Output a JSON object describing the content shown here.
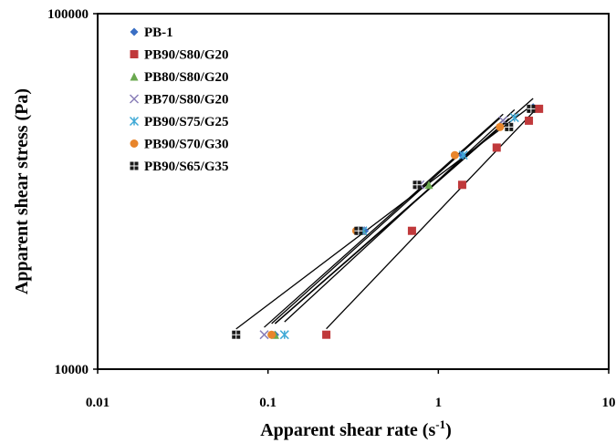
{
  "chart_data": {
    "type": "scatter",
    "xscale": "log",
    "yscale": "log",
    "xlim": [
      0.01,
      10
    ],
    "ylim": [
      10000,
      100000
    ],
    "xlabel": "Apparent shear rate (s",
    "xlabel_sup": "-1",
    "xlabel_tail": ")",
    "ylabel": "Apparent shear stress (Pa)",
    "xticks": [
      {
        "value": 0.01,
        "label": "0.01"
      },
      {
        "value": 0.1,
        "label": "0.1"
      },
      {
        "value": 1,
        "label": "1"
      },
      {
        "value": 10,
        "label": "10"
      }
    ],
    "yticks": [
      {
        "value": 10000,
        "label": "10000"
      },
      {
        "value": 100000,
        "label": "100000"
      }
    ],
    "grid": false,
    "legend_position": "top-left",
    "trendlines": "power",
    "series": [
      {
        "name": "PB-1",
        "color": "#3a6fc4",
        "marker": "diamond",
        "points": [
          [
            0.11,
            12500
          ],
          [
            0.37,
            24500
          ],
          [
            1.38,
            40000
          ],
          [
            3.6,
            54500
          ]
        ]
      },
      {
        "name": "PB90/S80/G20",
        "color": "#c0393b",
        "marker": "square",
        "points": [
          [
            0.22,
            12500
          ],
          [
            0.7,
            24500
          ],
          [
            1.38,
            33000
          ],
          [
            2.2,
            42000
          ],
          [
            3.4,
            50000
          ],
          [
            3.9,
            54000
          ]
        ]
      },
      {
        "name": "PB80/S80/G20",
        "color": "#6aa84f",
        "marker": "triangle",
        "points": [
          [
            0.11,
            12500
          ],
          [
            0.36,
            24500
          ],
          [
            0.88,
            33000
          ],
          [
            2.6,
            48000
          ]
        ]
      },
      {
        "name": "PB70/S80/G20",
        "color": "#8a7fb8",
        "marker": "x",
        "points": [
          [
            0.095,
            12500
          ],
          [
            0.35,
            24500
          ],
          [
            0.78,
            33000
          ],
          [
            2.4,
            50000
          ]
        ]
      },
      {
        "name": "PB90/S75/G25",
        "color": "#3fa9d6",
        "marker": "asterisk",
        "points": [
          [
            0.125,
            12500
          ],
          [
            0.36,
            24500
          ],
          [
            1.4,
            40000
          ],
          [
            2.8,
            51000
          ]
        ]
      },
      {
        "name": "PB90/S70/G30",
        "color": "#e8852b",
        "marker": "circle",
        "points": [
          [
            0.105,
            12500
          ],
          [
            0.33,
            24500
          ],
          [
            1.25,
            40000
          ],
          [
            2.3,
            48000
          ]
        ]
      },
      {
        "name": "PB90/S65/G35",
        "color": "#1a1a1a",
        "marker": "square-open",
        "points": [
          [
            0.065,
            12500
          ],
          [
            0.34,
            24500
          ],
          [
            0.75,
            33000
          ],
          [
            2.6,
            48000
          ],
          [
            3.5,
            54000
          ]
        ]
      }
    ]
  }
}
